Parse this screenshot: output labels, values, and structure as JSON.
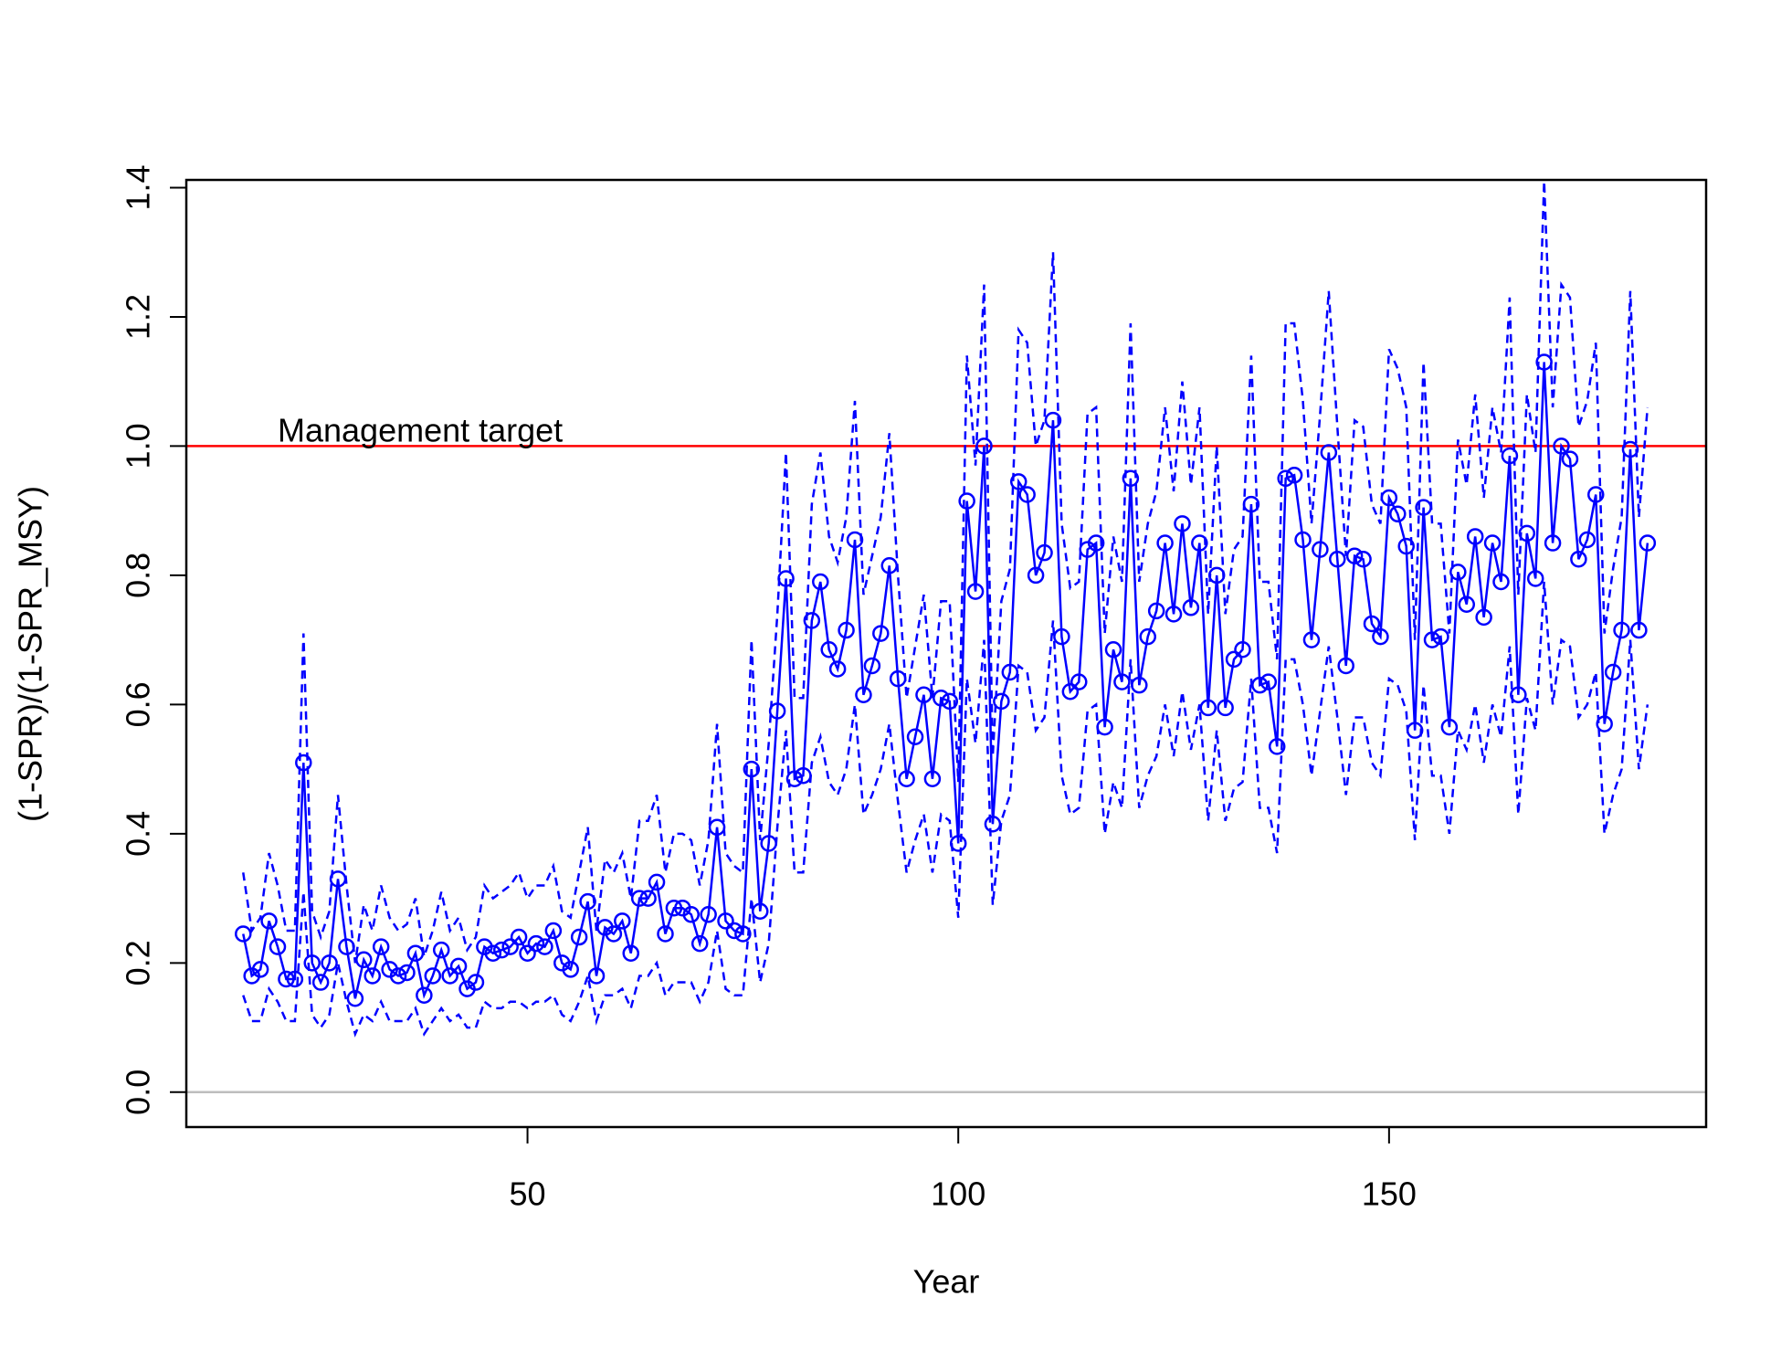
{
  "chart_data": {
    "type": "line",
    "xlabel": "Year",
    "ylabel": "(1-SPR)/(1-SPR_MSY)",
    "annotation": "Management target",
    "xlim": [
      10.4,
      186.8
    ],
    "ylim": [
      -0.054,
      1.412
    ],
    "xticks": [
      50,
      100,
      150
    ],
    "yticks": [
      {
        "value": 0,
        "label": "0.0"
      },
      0.2,
      0.4,
      0.6,
      0.8,
      {
        "value": 1,
        "label": "1.0"
      },
      1.2,
      1.4
    ],
    "hlines": [
      {
        "value": 1,
        "color": "#ff0000"
      },
      {
        "value": 0,
        "color": "#bebebe"
      }
    ],
    "x": [
      17,
      18,
      19,
      20,
      21,
      22,
      23,
      24,
      25,
      26,
      27,
      28,
      29,
      30,
      31,
      32,
      33,
      34,
      35,
      36,
      37,
      38,
      39,
      40,
      41,
      42,
      43,
      44,
      45,
      46,
      47,
      48,
      49,
      50,
      51,
      52,
      53,
      54,
      55,
      56,
      57,
      58,
      59,
      60,
      61,
      62,
      63,
      64,
      65,
      66,
      67,
      68,
      69,
      70,
      71,
      72,
      73,
      74,
      75,
      76,
      77,
      78,
      79,
      80,
      81,
      82,
      83,
      84,
      85,
      86,
      87,
      88,
      89,
      90,
      91,
      92,
      93,
      94,
      95,
      96,
      97,
      98,
      99,
      100,
      101,
      102,
      103,
      104,
      105,
      106,
      107,
      108,
      109,
      110,
      111,
      112,
      113,
      114,
      115,
      116,
      117,
      118,
      119,
      120,
      121,
      122,
      123,
      124,
      125,
      126,
      127,
      128,
      129,
      130,
      131,
      132,
      133,
      134,
      135,
      136,
      137,
      138,
      139,
      140,
      141,
      142,
      143,
      144,
      145,
      146,
      147,
      148,
      149,
      150,
      151,
      152,
      153,
      154,
      155,
      156,
      157,
      158,
      159,
      160,
      161,
      162,
      163,
      164,
      165,
      166,
      167,
      168,
      169,
      170,
      171,
      172,
      173,
      174,
      175,
      176,
      177,
      178,
      179,
      180
    ],
    "series": [
      {
        "color": "#0000ff",
        "style": "solid",
        "markers": true,
        "values": [
          0.245,
          0.18,
          0.19,
          0.265,
          0.225,
          0.175,
          0.175,
          0.51,
          0.2,
          0.17,
          0.2,
          0.33,
          0.225,
          0.145,
          0.205,
          0.18,
          0.225,
          0.19,
          0.18,
          0.185,
          0.215,
          0.15,
          0.18,
          0.22,
          0.18,
          0.195,
          0.16,
          0.17,
          0.225,
          0.215,
          0.22,
          0.225,
          0.24,
          0.215,
          0.23,
          0.225,
          0.25,
          0.2,
          0.19,
          0.24,
          0.295,
          0.18,
          0.255,
          0.245,
          0.265,
          0.215,
          0.3,
          0.3,
          0.325,
          0.245,
          0.285,
          0.285,
          0.275,
          0.23,
          0.275,
          0.41,
          0.265,
          0.25,
          0.245,
          0.5,
          0.28,
          0.385,
          0.59,
          0.795,
          0.485,
          0.49,
          0.73,
          0.79,
          0.685,
          0.655,
          0.715,
          0.855,
          0.615,
          0.66,
          0.71,
          0.815,
          0.64,
          0.485,
          0.55,
          0.615,
          0.485,
          0.61,
          0.605,
          0.385,
          0.915,
          0.775,
          1.0,
          0.415,
          0.605,
          0.65,
          0.945,
          0.925,
          0.8,
          0.835,
          1.04,
          0.705,
          0.62,
          0.635,
          0.84,
          0.85,
          0.565,
          0.685,
          0.635,
          0.95,
          0.63,
          0.705,
          0.745,
          0.85,
          0.74,
          0.88,
          0.75,
          0.85,
          0.595,
          0.8,
          0.595,
          0.67,
          0.685,
          0.91,
          0.63,
          0.635,
          0.535,
          0.95,
          0.955,
          0.855,
          0.7,
          0.84,
          0.99,
          0.825,
          0.66,
          0.83,
          0.825,
          0.725,
          0.705,
          0.92,
          0.895,
          0.845,
          0.56,
          0.905,
          0.7,
          0.705,
          0.565,
          0.805,
          0.755,
          0.86,
          0.735,
          0.85,
          0.79,
          0.985,
          0.615,
          0.865,
          0.795,
          1.13,
          0.85,
          1.0,
          0.98,
          0.825,
          0.855,
          0.925,
          0.57,
          0.65,
          0.715,
          0.995,
          0.715,
          0.85
        ]
      },
      {
        "color": "#0000ff",
        "style": "dashed",
        "markers": false,
        "values": [
          0.34,
          0.25,
          0.27,
          0.37,
          0.32,
          0.25,
          0.25,
          0.71,
          0.28,
          0.24,
          0.28,
          0.46,
          0.32,
          0.2,
          0.29,
          0.25,
          0.32,
          0.27,
          0.25,
          0.26,
          0.3,
          0.21,
          0.25,
          0.31,
          0.25,
          0.27,
          0.22,
          0.24,
          0.32,
          0.3,
          0.31,
          0.32,
          0.34,
          0.3,
          0.32,
          0.32,
          0.35,
          0.28,
          0.27,
          0.34,
          0.41,
          0.25,
          0.36,
          0.34,
          0.37,
          0.3,
          0.42,
          0.42,
          0.46,
          0.34,
          0.4,
          0.4,
          0.39,
          0.32,
          0.39,
          0.57,
          0.37,
          0.35,
          0.34,
          0.7,
          0.39,
          0.54,
          0.74,
          0.99,
          0.61,
          0.61,
          0.91,
          0.99,
          0.86,
          0.82,
          0.89,
          1.07,
          0.77,
          0.83,
          0.89,
          1.02,
          0.8,
          0.61,
          0.69,
          0.77,
          0.61,
          0.76,
          0.76,
          0.48,
          1.14,
          0.97,
          1.25,
          0.52,
          0.76,
          0.81,
          1.18,
          1.16,
          1.0,
          1.04,
          1.3,
          0.88,
          0.78,
          0.79,
          1.05,
          1.06,
          0.71,
          0.86,
          0.79,
          1.19,
          0.79,
          0.88,
          0.93,
          1.06,
          0.93,
          1.1,
          0.94,
          1.06,
          0.74,
          1.0,
          0.74,
          0.84,
          0.86,
          1.14,
          0.79,
          0.79,
          0.67,
          1.19,
          1.19,
          1.07,
          0.88,
          1.05,
          1.24,
          1.03,
          0.83,
          1.04,
          1.03,
          0.91,
          0.88,
          1.15,
          1.12,
          1.06,
          0.7,
          1.13,
          0.88,
          0.88,
          0.71,
          1.01,
          0.94,
          1.08,
          0.92,
          1.06,
          0.99,
          1.23,
          0.77,
          1.08,
          0.99,
          1.41,
          1.06,
          1.25,
          1.23,
          1.03,
          1.07,
          1.16,
          0.71,
          0.81,
          0.89,
          1.24,
          0.89,
          1.06
        ]
      },
      {
        "color": "#0000ff",
        "style": "dashed",
        "markers": false,
        "values": [
          0.15,
          0.11,
          0.11,
          0.16,
          0.14,
          0.11,
          0.11,
          0.31,
          0.12,
          0.1,
          0.12,
          0.2,
          0.14,
          0.09,
          0.12,
          0.11,
          0.14,
          0.11,
          0.11,
          0.11,
          0.13,
          0.09,
          0.11,
          0.13,
          0.11,
          0.12,
          0.1,
          0.1,
          0.14,
          0.13,
          0.13,
          0.14,
          0.14,
          0.13,
          0.14,
          0.14,
          0.15,
          0.12,
          0.11,
          0.14,
          0.18,
          0.11,
          0.15,
          0.15,
          0.16,
          0.13,
          0.18,
          0.18,
          0.2,
          0.15,
          0.17,
          0.17,
          0.17,
          0.14,
          0.17,
          0.25,
          0.16,
          0.15,
          0.15,
          0.3,
          0.17,
          0.23,
          0.41,
          0.56,
          0.34,
          0.34,
          0.51,
          0.55,
          0.48,
          0.46,
          0.5,
          0.6,
          0.43,
          0.46,
          0.5,
          0.57,
          0.45,
          0.34,
          0.39,
          0.43,
          0.34,
          0.43,
          0.42,
          0.27,
          0.64,
          0.54,
          0.7,
          0.29,
          0.42,
          0.46,
          0.66,
          0.65,
          0.56,
          0.58,
          0.73,
          0.49,
          0.43,
          0.44,
          0.59,
          0.6,
          0.4,
          0.48,
          0.44,
          0.67,
          0.44,
          0.49,
          0.52,
          0.6,
          0.52,
          0.62,
          0.53,
          0.6,
          0.42,
          0.56,
          0.42,
          0.47,
          0.48,
          0.64,
          0.44,
          0.44,
          0.37,
          0.67,
          0.67,
          0.6,
          0.49,
          0.59,
          0.69,
          0.58,
          0.46,
          0.58,
          0.58,
          0.51,
          0.49,
          0.64,
          0.63,
          0.59,
          0.39,
          0.63,
          0.49,
          0.49,
          0.4,
          0.56,
          0.53,
          0.6,
          0.51,
          0.6,
          0.55,
          0.69,
          0.43,
          0.61,
          0.56,
          0.79,
          0.6,
          0.7,
          0.69,
          0.58,
          0.6,
          0.65,
          0.4,
          0.46,
          0.5,
          0.7,
          0.5,
          0.6
        ]
      }
    ]
  }
}
